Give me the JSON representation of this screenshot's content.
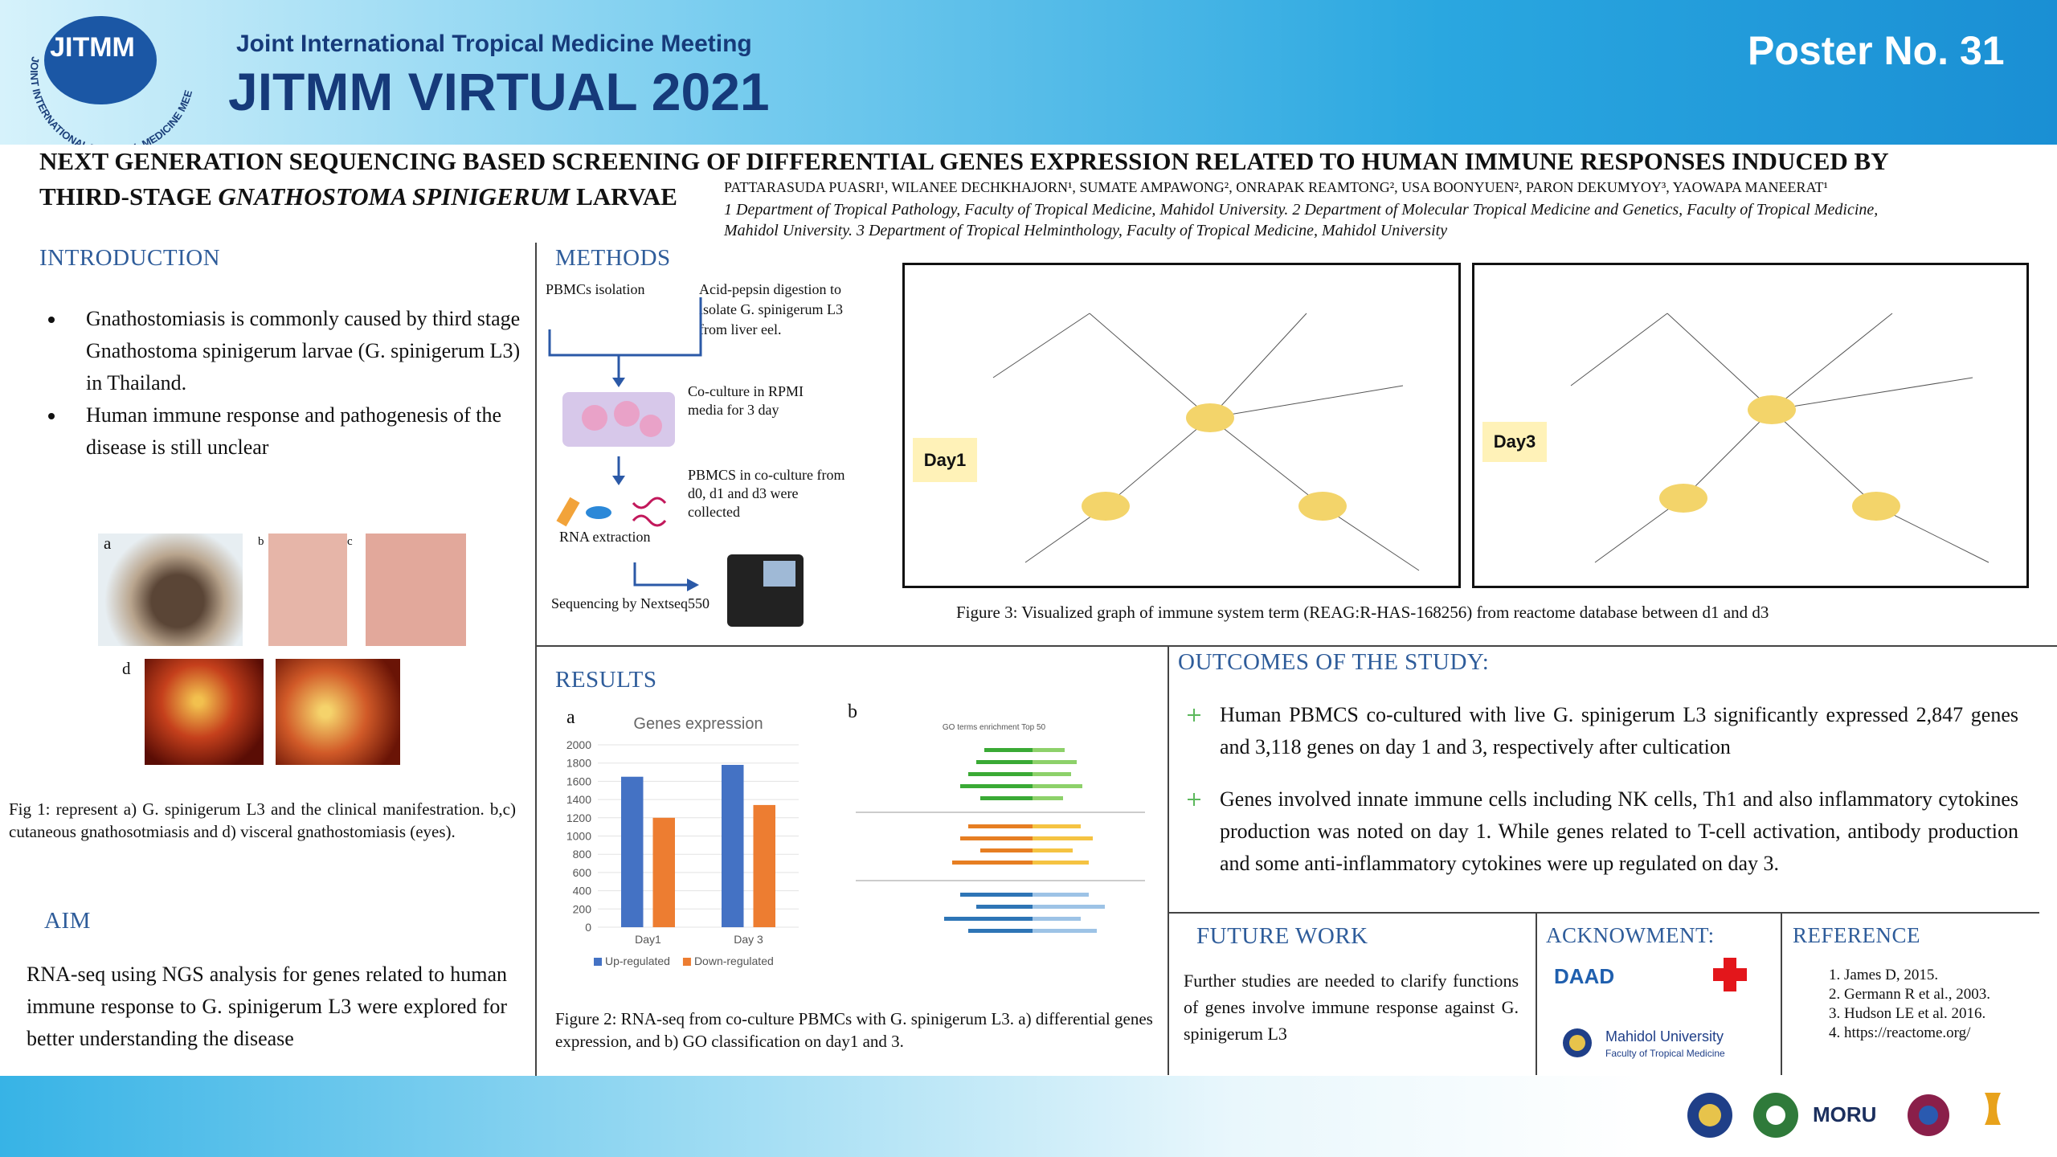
{
  "header": {
    "logo_text": "JITMM",
    "logo_arc": "JOINT INTERNATIONAL TROPICAL MEDICINE MEETING",
    "meeting": "Joint International Tropical Medicine Meeting",
    "event": "JITMM VIRTUAL 2021",
    "poster_no": "Poster No. 31"
  },
  "title": {
    "line1": "NEXT GENERATION SEQUENCING BASED SCREENING OF DIFFERENTIAL GENES EXPRESSION RELATED TO HUMAN IMMUNE RESPONSES INDUCED BY",
    "line2_start": "THIRD-STAGE ",
    "line2_italic": "GNATHOSTOMA SPINIGERUM",
    "line2_end": " LARVAE"
  },
  "authors": "PATTARASUDA PUASRI¹, WILANEE DECHKHAJORN¹, SUMATE AMPAWONG², ONRAPAK REAMTONG², USA BOONYUEN², PARON DEKUMYOY³, YAOWAPA MANEERAT¹",
  "affiliations": "1 Department of Tropical Pathology, Faculty of Tropical Medicine, Mahidol University. 2 Department of Molecular Tropical Medicine and Genetics, Faculty of Tropical Medicine, Mahidol University. 3 Department of Tropical Helminthology, Faculty of Tropical Medicine, Mahidol University",
  "introduction": {
    "heading": "INTRODUCTION",
    "bullets": [
      "Gnathostomiasis is commonly caused by third stage Gnathostoma spinigerum larvae (G. spinigerum L3) in Thailand.",
      "Human immune response and pathogenesis of the disease is still unclear"
    ]
  },
  "figure1": {
    "panels": [
      "a",
      "b",
      "c",
      "d"
    ],
    "caption": "Fig 1: represent a) G. spinigerum L3 and the clinical manifestration. b,c) cutaneous gnathosotmiasis and d) visceral gnathostomiasis (eyes)."
  },
  "aim": {
    "heading": "AIM",
    "text": "RNA-seq using NGS analysis for genes related to human immune response to G. spinigerum L3 were explored for better understanding the disease"
  },
  "methods": {
    "heading": "METHODS",
    "steps": [
      "PBMCs isolation",
      "Acid-pepsin digestion to isolate G. spinigerum L3 from liver eel.",
      "Co-culture in RPMI media for 3 day",
      "PBMCS in co-culture from d0, d1 and d3 were collected",
      "RNA extraction",
      "Sequencing by Nextseq550"
    ]
  },
  "figure3": {
    "panels": [
      "Day1",
      "Day3"
    ],
    "caption": "Figure 3: Visualized graph of immune system term (REAG:R-HAS-168256) from reactome database between d1 and d3"
  },
  "results": {
    "heading": "RESULTS",
    "panel_a": "a",
    "panel_b": "b",
    "panel_b_title": "GO terms enrichment Top 50",
    "chart_data": {
      "type": "bar",
      "title": "Genes expression",
      "categories": [
        "Day1",
        "Day 3"
      ],
      "series": [
        {
          "name": "Up-regulated",
          "color": "#4472c4",
          "values": [
            1650,
            1780
          ]
        },
        {
          "name": "Down-regulated",
          "color": "#ed7d31",
          "values": [
            1200,
            1340
          ]
        }
      ],
      "ylim": [
        0,
        2000
      ],
      "yticks": [
        0,
        200,
        400,
        600,
        800,
        1000,
        1200,
        1400,
        1600,
        1800,
        2000
      ],
      "grid": true,
      "legend": "bottom"
    },
    "caption": "Figure 2: RNA-seq from co-culture PBMCs with G. spinigerum L3. a) differential genes expression, and b) GO classification on day1 and 3."
  },
  "outcomes": {
    "heading": "OUTCOMES OF THE STUDY:",
    "items": [
      "Human PBMCS co-cultured with live G. spinigerum L3 significantly expressed 2,847 genes and 3,118 genes on day 1 and 3, respectively after cultication",
      "Genes involved innate immune cells including NK cells, Th1 and also inflammatory cytokines production was noted on day 1. While genes related to T-cell activation, antibody production and some anti-inflammatory cytokines were up regulated on day 3."
    ]
  },
  "future_work": {
    "heading": "FUTURE WORK",
    "text": "Further studies are needed to clarify functions of genes involve immune response against G. spinigerum L3"
  },
  "acknowledgment": {
    "heading": "ACKNOWMENT:",
    "logos": [
      "DAAD",
      "Mahidol University",
      "Faculty of Tropical Medicine"
    ]
  },
  "reference": {
    "heading": "REFERENCE",
    "items": [
      "James D, 2015.",
      "Germann R et al., 2003.",
      "Hudson LE et al. 2016.",
      "https://reactome.org/"
    ]
  },
  "footer": {
    "logo_text": "MORU"
  }
}
